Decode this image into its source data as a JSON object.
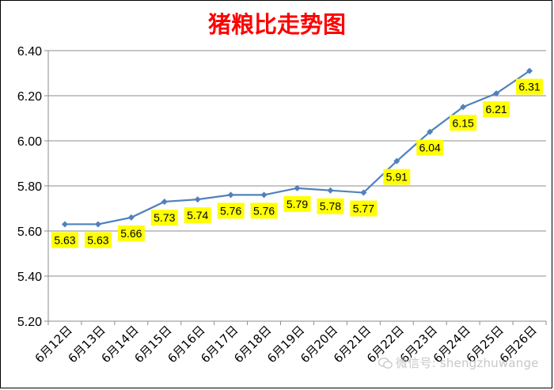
{
  "watermark": "微信号: shengzhuwange",
  "chart_data": {
    "type": "line",
    "title": "猪粮比走势图",
    "categories": [
      "6月12日",
      "6月13日",
      "6月14日",
      "6月15日",
      "6月16日",
      "6月17日",
      "6月18日",
      "6月19日",
      "6月20日",
      "6月21日",
      "6月22日",
      "6月23日",
      "6月24日",
      "6月25日",
      "6月26日"
    ],
    "series": [
      {
        "values": [
          5.63,
          5.63,
          5.66,
          5.73,
          5.74,
          5.76,
          5.76,
          5.79,
          5.78,
          5.77,
          5.91,
          6.04,
          6.15,
          6.21,
          6.31
        ]
      }
    ],
    "data_labels": [
      "5.63",
      "5.63",
      "5.66",
      "5.73",
      "5.74",
      "5.76",
      "5.76",
      "5.79",
      "5.78",
      "5.77",
      "5.91",
      "6.04",
      "6.15",
      "6.21",
      "6.31"
    ],
    "yticks": [
      "5.20",
      "5.40",
      "5.60",
      "5.80",
      "6.00",
      "6.20",
      "6.40"
    ],
    "ylim": [
      5.2,
      6.4
    ],
    "grid": true,
    "legend": "none",
    "colors": {
      "line": "#4f81bd",
      "marker": "#4f81bd",
      "label_bg": "#ffff00",
      "grid": "#8c8c8c",
      "title": "#ff0000"
    }
  }
}
